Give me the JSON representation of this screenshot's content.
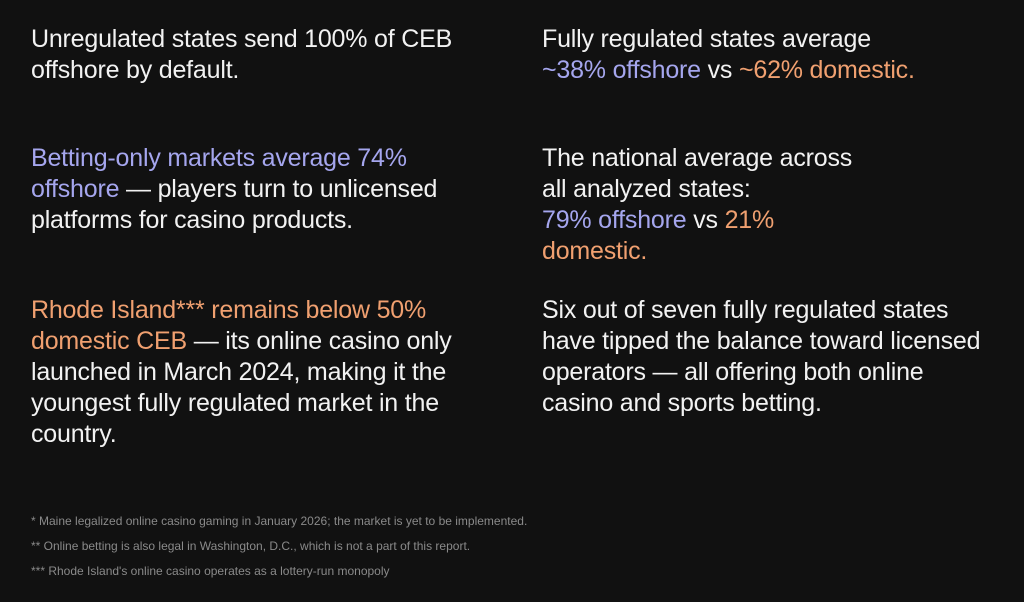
{
  "colors": {
    "background": "#111111",
    "text": "#f2f2f2",
    "offshore_accent": "#a5a6ee",
    "domestic_accent": "#f0a070",
    "footnote": "#8a8a8a"
  },
  "blocks": {
    "unregulated": {
      "text": "Unregulated states send 100% of CEB offshore by default."
    },
    "fully_regulated": {
      "lead": "Fully regulated states average",
      "offshore": "~38% offshore",
      "vs": " vs ",
      "domestic": "~62% domestic."
    },
    "betting_only": {
      "highlight": "Betting-only markets average 74% offshore",
      "rest": " — players turn to unlicensed platforms for casino products."
    },
    "national_average": {
      "lead": "The national average across all analyzed states:",
      "offshore": "79% offshore",
      "vs": " vs ",
      "domestic": "21% domestic."
    },
    "rhode_island": {
      "highlight": "Rhode Island*** remains below 50% domestic CEB",
      "rest": " — its online casino only launched in March 2024, making it the youngest fully regulated market in the country."
    },
    "six_of_seven": {
      "text": "Six out of seven fully regulated states have tipped the balance toward licensed operators — all offering both online casino and sports betting."
    }
  },
  "footnotes": [
    "* Maine legalized online casino gaming in January 2026; the market is yet to be implemented.",
    "** Online betting is also legal in Washington, D.C., which is not a part of this report.",
    "*** Rhode Island's online casino operates as a lottery-run monopoly"
  ]
}
